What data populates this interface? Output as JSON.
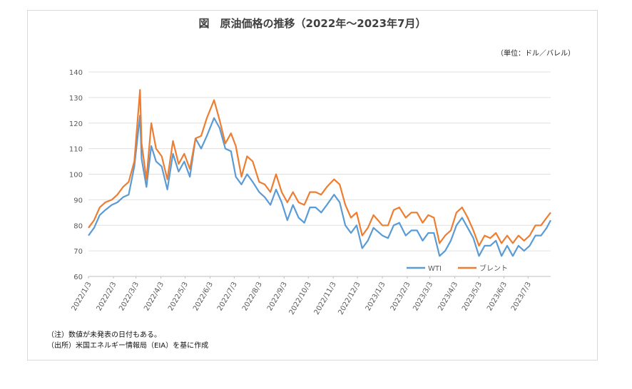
{
  "chart_data": {
    "type": "line",
    "title": "図　原油価格の推移（2022年～2023年7月）",
    "unit_label": "（単位：ドル／バレル）",
    "ylim": [
      60,
      140
    ],
    "yticks": [
      "60",
      "70",
      "80",
      "90",
      "100",
      "110",
      "120",
      "130",
      "140"
    ],
    "x_tick_labels": [
      "2022/1/3",
      "2022/2/3",
      "2022/3/3",
      "2022/4/3",
      "2022/5/3",
      "2022/6/3",
      "2022/7/3",
      "2022/8/3",
      "2022/9/3",
      "2022/10/3",
      "2022/11/3",
      "2022/12/3",
      "2023/1/3",
      "2023/2/3",
      "2023/3/3",
      "2023/4/3",
      "2023/5/3",
      "2023/6/3",
      "2023/7/3"
    ],
    "x_range": [
      "2022-01-03",
      "2023-07-31"
    ],
    "grid": "horizontal",
    "legend_position": "bottom-right",
    "series": [
      {
        "name": "WTI",
        "color": "#5b9bd5",
        "points": [
          [
            "2022-01-03",
            76
          ],
          [
            "2022-01-10",
            79
          ],
          [
            "2022-01-17",
            84
          ],
          [
            "2022-01-24",
            86
          ],
          [
            "2022-02-01",
            88
          ],
          [
            "2022-02-08",
            89
          ],
          [
            "2022-02-15",
            91
          ],
          [
            "2022-02-22",
            92
          ],
          [
            "2022-03-01",
            103
          ],
          [
            "2022-03-08",
            123
          ],
          [
            "2022-03-10",
            106
          ],
          [
            "2022-03-16",
            95
          ],
          [
            "2022-03-22",
            111
          ],
          [
            "2022-03-28",
            105
          ],
          [
            "2022-04-04",
            103
          ],
          [
            "2022-04-11",
            94
          ],
          [
            "2022-04-18",
            108
          ],
          [
            "2022-04-25",
            101
          ],
          [
            "2022-05-02",
            105
          ],
          [
            "2022-05-09",
            99
          ],
          [
            "2022-05-16",
            114
          ],
          [
            "2022-05-23",
            110
          ],
          [
            "2022-05-30",
            115
          ],
          [
            "2022-06-08",
            122
          ],
          [
            "2022-06-15",
            118
          ],
          [
            "2022-06-22",
            110
          ],
          [
            "2022-06-29",
            109
          ],
          [
            "2022-07-05",
            99
          ],
          [
            "2022-07-12",
            96
          ],
          [
            "2022-07-19",
            100
          ],
          [
            "2022-07-26",
            97
          ],
          [
            "2022-08-03",
            93
          ],
          [
            "2022-08-10",
            91
          ],
          [
            "2022-08-17",
            88
          ],
          [
            "2022-08-24",
            94
          ],
          [
            "2022-08-31",
            89
          ],
          [
            "2022-09-07",
            82
          ],
          [
            "2022-09-14",
            88
          ],
          [
            "2022-09-21",
            83
          ],
          [
            "2022-09-28",
            81
          ],
          [
            "2022-10-05",
            87
          ],
          [
            "2022-10-12",
            87
          ],
          [
            "2022-10-19",
            85
          ],
          [
            "2022-10-26",
            88
          ],
          [
            "2022-11-04",
            92
          ],
          [
            "2022-11-11",
            89
          ],
          [
            "2022-11-18",
            80
          ],
          [
            "2022-11-25",
            77
          ],
          [
            "2022-12-02",
            80
          ],
          [
            "2022-12-09",
            71
          ],
          [
            "2022-12-16",
            74
          ],
          [
            "2022-12-23",
            79
          ],
          [
            "2023-01-03",
            76
          ],
          [
            "2023-01-10",
            75
          ],
          [
            "2023-01-17",
            80
          ],
          [
            "2023-01-24",
            81
          ],
          [
            "2023-02-01",
            76
          ],
          [
            "2023-02-08",
            78
          ],
          [
            "2023-02-15",
            78
          ],
          [
            "2023-02-22",
            74
          ],
          [
            "2023-03-01",
            77
          ],
          [
            "2023-03-08",
            77
          ],
          [
            "2023-03-15",
            68
          ],
          [
            "2023-03-22",
            70
          ],
          [
            "2023-03-29",
            74
          ],
          [
            "2023-04-05",
            80
          ],
          [
            "2023-04-12",
            83
          ],
          [
            "2023-04-19",
            79
          ],
          [
            "2023-04-26",
            75
          ],
          [
            "2023-05-03",
            68
          ],
          [
            "2023-05-10",
            72
          ],
          [
            "2023-05-17",
            72
          ],
          [
            "2023-05-24",
            74
          ],
          [
            "2023-05-31",
            68
          ],
          [
            "2023-06-07",
            72
          ],
          [
            "2023-06-14",
            68
          ],
          [
            "2023-06-21",
            72
          ],
          [
            "2023-06-28",
            70
          ],
          [
            "2023-07-05",
            72
          ],
          [
            "2023-07-12",
            76
          ],
          [
            "2023-07-19",
            76
          ],
          [
            "2023-07-26",
            79
          ],
          [
            "2023-07-31",
            82
          ]
        ]
      },
      {
        "name": "ブレント",
        "color": "#ed7d31",
        "points": [
          [
            "2022-01-03",
            79
          ],
          [
            "2022-01-10",
            82
          ],
          [
            "2022-01-17",
            87
          ],
          [
            "2022-01-24",
            89
          ],
          [
            "2022-02-01",
            90
          ],
          [
            "2022-02-08",
            92
          ],
          [
            "2022-02-15",
            95
          ],
          [
            "2022-02-22",
            97
          ],
          [
            "2022-03-01",
            105
          ],
          [
            "2022-03-08",
            133
          ],
          [
            "2022-03-10",
            112
          ],
          [
            "2022-03-16",
            98
          ],
          [
            "2022-03-22",
            120
          ],
          [
            "2022-03-28",
            110
          ],
          [
            "2022-04-04",
            107
          ],
          [
            "2022-04-11",
            98
          ],
          [
            "2022-04-18",
            113
          ],
          [
            "2022-04-25",
            104
          ],
          [
            "2022-05-02",
            108
          ],
          [
            "2022-05-09",
            102
          ],
          [
            "2022-05-16",
            114
          ],
          [
            "2022-05-23",
            115
          ],
          [
            "2022-05-30",
            122
          ],
          [
            "2022-06-08",
            129
          ],
          [
            "2022-06-15",
            121
          ],
          [
            "2022-06-22",
            112
          ],
          [
            "2022-06-29",
            116
          ],
          [
            "2022-07-05",
            111
          ],
          [
            "2022-07-12",
            99
          ],
          [
            "2022-07-19",
            107
          ],
          [
            "2022-07-26",
            105
          ],
          [
            "2022-08-03",
            97
          ],
          [
            "2022-08-10",
            96
          ],
          [
            "2022-08-17",
            93
          ],
          [
            "2022-08-24",
            100
          ],
          [
            "2022-08-31",
            93
          ],
          [
            "2022-09-07",
            89
          ],
          [
            "2022-09-14",
            93
          ],
          [
            "2022-09-21",
            89
          ],
          [
            "2022-09-28",
            88
          ],
          [
            "2022-10-05",
            93
          ],
          [
            "2022-10-12",
            93
          ],
          [
            "2022-10-19",
            92
          ],
          [
            "2022-10-26",
            95
          ],
          [
            "2022-11-04",
            98
          ],
          [
            "2022-11-11",
            96
          ],
          [
            "2022-11-18",
            88
          ],
          [
            "2022-11-25",
            83
          ],
          [
            "2022-12-02",
            85
          ],
          [
            "2022-12-09",
            76
          ],
          [
            "2022-12-16",
            79
          ],
          [
            "2022-12-23",
            84
          ],
          [
            "2023-01-03",
            80
          ],
          [
            "2023-01-10",
            80
          ],
          [
            "2023-01-17",
            86
          ],
          [
            "2023-01-24",
            87
          ],
          [
            "2023-02-01",
            83
          ],
          [
            "2023-02-08",
            85
          ],
          [
            "2023-02-15",
            85
          ],
          [
            "2023-02-22",
            81
          ],
          [
            "2023-03-01",
            84
          ],
          [
            "2023-03-08",
            83
          ],
          [
            "2023-03-15",
            73
          ],
          [
            "2023-03-22",
            76
          ],
          [
            "2023-03-29",
            78
          ],
          [
            "2023-04-05",
            85
          ],
          [
            "2023-04-12",
            87
          ],
          [
            "2023-04-19",
            83
          ],
          [
            "2023-04-26",
            78
          ],
          [
            "2023-05-03",
            72
          ],
          [
            "2023-05-10",
            76
          ],
          [
            "2023-05-17",
            75
          ],
          [
            "2023-05-24",
            77
          ],
          [
            "2023-05-31",
            73
          ],
          [
            "2023-06-07",
            76
          ],
          [
            "2023-06-14",
            73
          ],
          [
            "2023-06-21",
            76
          ],
          [
            "2023-06-28",
            74
          ],
          [
            "2023-07-05",
            76
          ],
          [
            "2023-07-12",
            80
          ],
          [
            "2023-07-19",
            80
          ],
          [
            "2023-07-26",
            83
          ],
          [
            "2023-07-31",
            85
          ]
        ]
      }
    ]
  },
  "notes": {
    "note": "（注）数値が未発表の日付もある。",
    "source": "（出所）米国エネルギー情報局（EIA）を基に作成"
  }
}
